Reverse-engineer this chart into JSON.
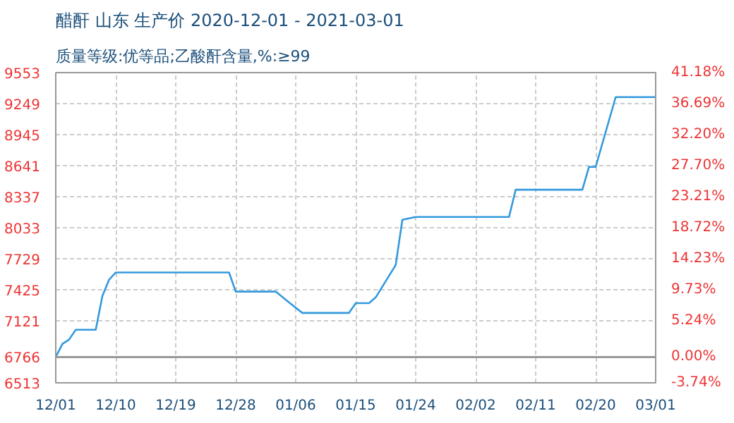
{
  "chart_data": {
    "type": "line",
    "title": "醋酐 山东 生产价 2020-12-01 - 2021-03-01",
    "subtitle": "质量等级:优等品;乙酸酐含量,%:≥99",
    "x": [
      "2020-12-01",
      "2020-12-02",
      "2020-12-03",
      "2020-12-04",
      "2020-12-07",
      "2020-12-08",
      "2020-12-09",
      "2020-12-10",
      "2020-12-27",
      "2020-12-28",
      "2021-01-03",
      "2021-01-05",
      "2021-01-07",
      "2021-01-14",
      "2021-01-15",
      "2021-01-17",
      "2021-01-18",
      "2021-01-21",
      "2021-01-22",
      "2021-01-24",
      "2021-02-07",
      "2021-02-08",
      "2021-02-18",
      "2021-02-19",
      "2021-02-20",
      "2021-02-23",
      "2021-03-01"
    ],
    "series": [
      {
        "color": "#3399dd",
        "values": [
          6766,
          6894,
          6937,
          7033,
          7033,
          7364,
          7524,
          7594,
          7594,
          7407,
          7407,
          7300,
          7198,
          7198,
          7294,
          7294,
          7350,
          7668,
          8111,
          8138,
          8138,
          8405,
          8405,
          8629,
          8629,
          9313,
          9313
        ]
      }
    ],
    "xlim": [
      "2020-12-01",
      "2021-03-01"
    ],
    "xticks": [
      {
        "value": "2020-12-01",
        "label": "12/01"
      },
      {
        "value": "2020-12-10",
        "label": "12/10"
      },
      {
        "value": "2020-12-19",
        "label": "12/19"
      },
      {
        "value": "2020-12-28",
        "label": "12/28"
      },
      {
        "value": "2021-01-06",
        "label": "01/06"
      },
      {
        "value": "2021-01-15",
        "label": "01/15"
      },
      {
        "value": "2021-01-24",
        "label": "01/24"
      },
      {
        "value": "2021-02-02",
        "label": "02/02"
      },
      {
        "value": "2021-02-11",
        "label": "02/11"
      },
      {
        "value": "2021-02-20",
        "label": "02/20"
      },
      {
        "value": "2021-03-01",
        "label": "03/01"
      }
    ],
    "ylim": [
      6513,
      9553
    ],
    "yticks": [
      6513,
      6766,
      7121,
      7425,
      7729,
      8033,
      8337,
      8641,
      8945,
      9249,
      9553
    ],
    "y2lim": [
      -3.74,
      41.18
    ],
    "y2ticks": [
      {
        "value": -3.74,
        "label": "-3.74%"
      },
      {
        "value": 0,
        "label": "0.00%"
      },
      {
        "value": 5.24,
        "label": "5.24%"
      },
      {
        "value": 9.73,
        "label": "9.73%"
      },
      {
        "value": 14.23,
        "label": "14.23%"
      },
      {
        "value": 18.72,
        "label": "18.72%"
      },
      {
        "value": 23.21,
        "label": "23.21%"
      },
      {
        "value": 27.7,
        "label": "27.70%"
      },
      {
        "value": 32.2,
        "label": "32.20%"
      },
      {
        "value": 36.69,
        "label": "36.69%"
      },
      {
        "value": 41.18,
        "label": "41.18%"
      }
    ],
    "ref_lines": [
      {
        "axis": "y",
        "value": 6766,
        "label": null,
        "color": "#999999"
      }
    ],
    "grid": true
  }
}
